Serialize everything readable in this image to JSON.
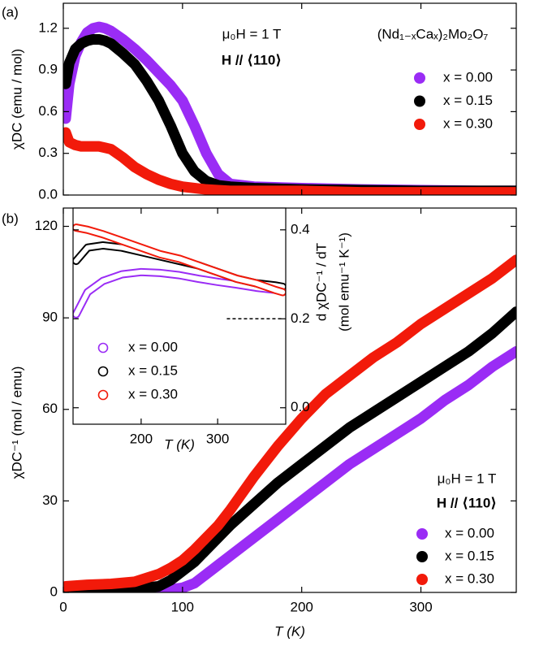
{
  "chart_data": [
    {
      "type": "line",
      "panel_label": "(a)",
      "ylabel": "χDC (emu / mol)",
      "annotations": [
        "μ₀H = 1 T",
        "H // ⟨110⟩",
        "(Nd₁₋ₓCaₓ)₂Mo₂O₇"
      ],
      "xlim": [
        0,
        380
      ],
      "xticks": [
        0,
        100,
        200,
        300
      ],
      "ylim": [
        0,
        1.38
      ],
      "yticks": [
        {
          "value": 0,
          "label": "0.0"
        },
        0.3,
        0.6,
        0.9,
        1.2
      ],
      "x": [
        2,
        5,
        10,
        15,
        20,
        25,
        30,
        35,
        40,
        50,
        60,
        70,
        80,
        90,
        100,
        110,
        120,
        130,
        140,
        160,
        200,
        250,
        300,
        350,
        380
      ],
      "series": [
        {
          "name": "x = 0.00",
          "color": "#9a2cf5",
          "values": [
            0.55,
            0.8,
            1.0,
            1.1,
            1.17,
            1.2,
            1.21,
            1.2,
            1.18,
            1.12,
            1.05,
            0.97,
            0.88,
            0.79,
            0.68,
            0.5,
            0.3,
            0.15,
            0.08,
            0.06,
            0.05,
            0.04,
            0.035,
            0.03,
            0.03
          ]
        },
        {
          "name": "x = 0.15",
          "color": "#000000",
          "values": [
            0.8,
            0.95,
            1.05,
            1.09,
            1.11,
            1.12,
            1.12,
            1.11,
            1.09,
            1.02,
            0.94,
            0.82,
            0.68,
            0.5,
            0.3,
            0.17,
            0.1,
            0.07,
            0.06,
            0.05,
            0.04,
            0.035,
            0.03,
            0.03,
            0.03
          ]
        },
        {
          "name": "x = 0.30",
          "color": "#f21a0a",
          "values": [
            0.45,
            0.38,
            0.36,
            0.35,
            0.35,
            0.35,
            0.35,
            0.34,
            0.33,
            0.27,
            0.2,
            0.15,
            0.11,
            0.08,
            0.06,
            0.05,
            0.04,
            0.035,
            0.03,
            0.03,
            0.03,
            0.02,
            0.02,
            0.02,
            0.02
          ]
        }
      ],
      "marker": "filled"
    },
    {
      "type": "line",
      "panel_label": "(b)",
      "ylabel": "χDC⁻¹ (mol / emu)",
      "xlabel": "T (K)",
      "annotations": [
        "μ₀H = 1 T",
        "H // ⟨110⟩"
      ],
      "xlim": [
        0,
        380
      ],
      "xticks": [
        0,
        100,
        200,
        300
      ],
      "ylim": [
        0,
        126
      ],
      "yticks": [
        0,
        30,
        60,
        90,
        120
      ],
      "x": [
        2,
        20,
        40,
        60,
        80,
        90,
        100,
        110,
        120,
        130,
        140,
        160,
        180,
        200,
        220,
        240,
        260,
        280,
        300,
        320,
        340,
        360,
        380
      ],
      "series": [
        {
          "name": "x = 0.00",
          "color": "#9a2cf5",
          "values": [
            0,
            0,
            0,
            0.2,
            0.5,
            1,
            1.5,
            3,
            6,
            9,
            12,
            18,
            24,
            30,
            36,
            42,
            47,
            52,
            57,
            63,
            68,
            74,
            79
          ]
        },
        {
          "name": "x = 0.15",
          "color": "#000000",
          "values": [
            0.5,
            0.8,
            1,
            1.2,
            2,
            4,
            7,
            10,
            14,
            18,
            22,
            29,
            36,
            42,
            48,
            54,
            59,
            64,
            69,
            74,
            79,
            85,
            92
          ]
        },
        {
          "name": "x = 0.30",
          "color": "#f21a0a",
          "values": [
            2,
            2.5,
            2.8,
            3.5,
            6,
            8,
            10.5,
            14,
            18,
            22,
            27,
            38,
            48,
            57,
            65,
            71,
            77,
            82,
            88,
            93,
            98,
            103,
            109
          ]
        }
      ],
      "marker": "filled"
    },
    {
      "type": "line",
      "xlabel": "T (K)",
      "y2label": [
        "d χDC⁻¹ / dT",
        "(mol emu⁻¹ K⁻¹)"
      ],
      "xlim": [
        111,
        389
      ],
      "xticks": [
        200,
        300
      ],
      "y2lim": [
        -0.037,
        0.449
      ],
      "y2ticks": [
        {
          "value": 0,
          "label": "0.0"
        },
        0.2,
        0.4
      ],
      "dashed_line": {
        "y": 0.2,
        "x": [
          312,
          385
        ]
      },
      "x": [
        115,
        130,
        150,
        175,
        200,
        225,
        250,
        275,
        300,
        325,
        350,
        375,
        385
      ],
      "series": [
        {
          "name": "x = 0.00",
          "color": "#9a2cf5",
          "axis": "y2",
          "values": [
            0.21,
            0.26,
            0.285,
            0.3,
            0.305,
            0.303,
            0.298,
            0.29,
            0.283,
            0.277,
            0.27,
            0.265,
            0.262
          ]
        },
        {
          "name": "x = 0.15",
          "color": "#000000",
          "axis": "y2",
          "values": [
            0.33,
            0.36,
            0.365,
            0.36,
            0.35,
            0.34,
            0.33,
            0.32,
            0.305,
            0.29,
            0.28,
            0.275,
            0.272
          ]
        },
        {
          "name": "x = 0.30",
          "color": "#f21a0a",
          "axis": "y2",
          "values": [
            0.405,
            0.4,
            0.39,
            0.375,
            0.36,
            0.345,
            0.335,
            0.32,
            0.305,
            0.29,
            0.28,
            0.265,
            0.26
          ]
        }
      ],
      "marker": "open"
    }
  ]
}
